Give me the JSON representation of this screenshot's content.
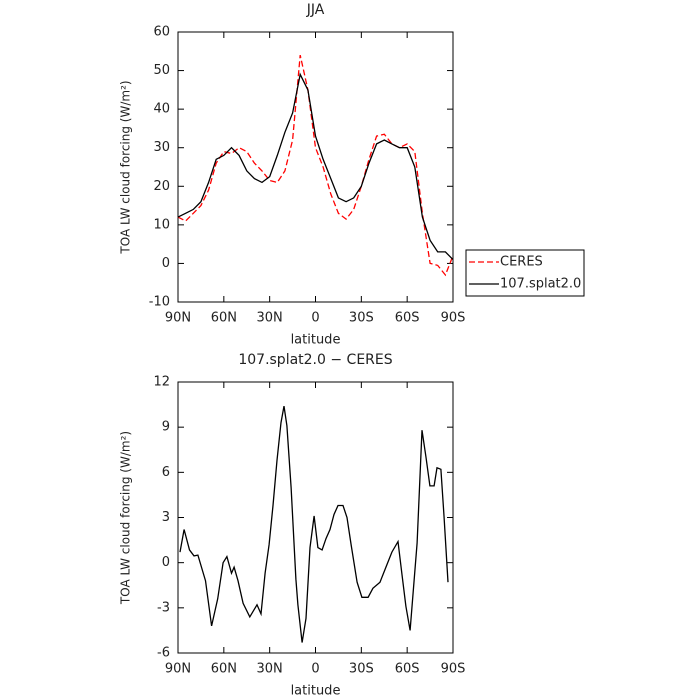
{
  "chart_data": [
    {
      "type": "line",
      "title": "JJA",
      "xlabel": "latitude",
      "ylabel": "TOA LW cloud forcing (W/m²)",
      "x": [
        90,
        85,
        80,
        75,
        70,
        65,
        60,
        55,
        50,
        45,
        40,
        35,
        30,
        25,
        20,
        15,
        10,
        5,
        0,
        -5,
        -10,
        -15,
        -20,
        -25,
        -30,
        -35,
        -40,
        -45,
        -50,
        -55,
        -60,
        -65,
        -70,
        -75,
        -80,
        -85,
        -90
      ],
      "series": [
        {
          "name": "CERES",
          "color": "#ff0000",
          "line_style": "dashed",
          "values": [
            12,
            11,
            13,
            15,
            19,
            26,
            29,
            28.5,
            30,
            29,
            26,
            24,
            21.5,
            21,
            24,
            32,
            54,
            45,
            30,
            25,
            18,
            13,
            11.5,
            14,
            20,
            27,
            33,
            33.5,
            31,
            30,
            31,
            29,
            13,
            0,
            -0.5,
            -3,
            2
          ]
        },
        {
          "name": "107.splat2.0",
          "color": "#000000",
          "line_style": "solid",
          "values": [
            12,
            13,
            14,
            16,
            21,
            27,
            28,
            30,
            28,
            24,
            22,
            21,
            22.5,
            28,
            34,
            39,
            49,
            45,
            33,
            27,
            22,
            17,
            16,
            17,
            20,
            26,
            31,
            32,
            31,
            30,
            30,
            25,
            12,
            6,
            3,
            3,
            1
          ]
        }
      ],
      "xlim": [
        90,
        -90
      ],
      "xticks": [
        {
          "value": 90,
          "label": "90N"
        },
        {
          "value": 60,
          "label": "60N"
        },
        {
          "value": 30,
          "label": "30N"
        },
        0,
        {
          "value": -30,
          "label": "30S"
        },
        {
          "value": -60,
          "label": "60S"
        },
        {
          "value": -90,
          "label": "90S"
        }
      ],
      "ylim": [
        -10,
        60
      ],
      "yticks": [
        -10,
        0,
        10,
        20,
        30,
        40,
        50,
        60
      ],
      "legend": "right"
    },
    {
      "type": "line",
      "title": "107.splat2.0 − CERES",
      "xlabel": "latitude",
      "ylabel": "TOA LW cloud forcing (W/m²)",
      "x": [
        88.7,
        86,
        82.5,
        79.5,
        77,
        72,
        68,
        64,
        60.5,
        58,
        55,
        53.3,
        50.7,
        47.4,
        43,
        38.3,
        35.7,
        33,
        30.4,
        27.8,
        25.2,
        22.6,
        20.6,
        18.7,
        16,
        12.8,
        11.5,
        8.8,
        6.2,
        3.6,
        0.9,
        -1.6,
        -4.3,
        -6.9,
        -9.5,
        -12.1,
        -14.7,
        -18,
        -20.6,
        -23.3,
        -27.2,
        -30.4,
        -34.4,
        -37.6,
        -42.2,
        -46.1,
        -50,
        -54,
        -56.6,
        -59.2,
        -61.9,
        -66.5,
        -69.7,
        -72.3,
        -74.9,
        -77.6,
        -79.5,
        -82.1,
        -84.1,
        -86.7
      ],
      "values": [
        0.7,
        2.2,
        0.85,
        0.45,
        0.5,
        -1.2,
        -4.2,
        -2.4,
        0,
        0.4,
        -0.7,
        -0.3,
        -1.2,
        -2.7,
        -3.6,
        -2.8,
        -3.4,
        -0.7,
        1.2,
        3.8,
        6.8,
        9.3,
        10.4,
        9.1,
        5,
        -1.1,
        -2.8,
        -5.3,
        -3.7,
        1,
        3.1,
        1,
        0.85,
        1.6,
        2.2,
        3.2,
        3.8,
        3.8,
        3,
        1.2,
        -1.3,
        -2.3,
        -2.3,
        -1.7,
        -1.3,
        -0.3,
        0.7,
        1.4,
        -0.8,
        -2.9,
        -4.5,
        1.3,
        8.8,
        7,
        5.1,
        5.1,
        6.3,
        6.2,
        3.1,
        -1.3
      ],
      "color": "#000000",
      "xlim": [
        90,
        -90
      ],
      "xticks": [
        {
          "value": 90,
          "label": "90N"
        },
        {
          "value": 60,
          "label": "60N"
        },
        {
          "value": 30,
          "label": "30N"
        },
        0,
        {
          "value": -30,
          "label": "30S"
        },
        {
          "value": -60,
          "label": "60S"
        },
        {
          "value": -90,
          "label": "90S"
        }
      ],
      "ylim": [
        -6,
        12
      ],
      "yticks": [
        -6,
        -3,
        0,
        3,
        6,
        9,
        12
      ]
    }
  ]
}
